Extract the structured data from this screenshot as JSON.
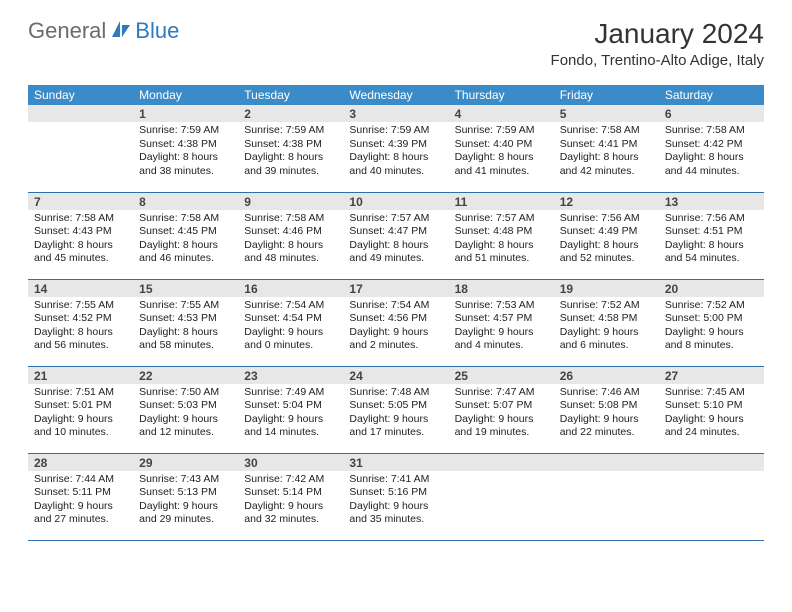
{
  "brand": {
    "text1": "General",
    "text2": "Blue"
  },
  "title": "January 2024",
  "location": "Fondo, Trentino-Alto Adige, Italy",
  "colors": {
    "header_bg": "#3b8bc8",
    "header_text": "#ffffff",
    "daynum_bg": "#e7e7e7",
    "row_border": "#2f6fa8",
    "brand_gray": "#6b6b6b",
    "brand_blue": "#2f7bbf"
  },
  "weekdays": [
    "Sunday",
    "Monday",
    "Tuesday",
    "Wednesday",
    "Thursday",
    "Friday",
    "Saturday"
  ],
  "weeks": [
    [
      null,
      {
        "n": "1",
        "sr": "7:59 AM",
        "ss": "4:38 PM",
        "dl1": "Daylight: 8 hours",
        "dl2": "and 38 minutes."
      },
      {
        "n": "2",
        "sr": "7:59 AM",
        "ss": "4:38 PM",
        "dl1": "Daylight: 8 hours",
        "dl2": "and 39 minutes."
      },
      {
        "n": "3",
        "sr": "7:59 AM",
        "ss": "4:39 PM",
        "dl1": "Daylight: 8 hours",
        "dl2": "and 40 minutes."
      },
      {
        "n": "4",
        "sr": "7:59 AM",
        "ss": "4:40 PM",
        "dl1": "Daylight: 8 hours",
        "dl2": "and 41 minutes."
      },
      {
        "n": "5",
        "sr": "7:58 AM",
        "ss": "4:41 PM",
        "dl1": "Daylight: 8 hours",
        "dl2": "and 42 minutes."
      },
      {
        "n": "6",
        "sr": "7:58 AM",
        "ss": "4:42 PM",
        "dl1": "Daylight: 8 hours",
        "dl2": "and 44 minutes."
      }
    ],
    [
      {
        "n": "7",
        "sr": "7:58 AM",
        "ss": "4:43 PM",
        "dl1": "Daylight: 8 hours",
        "dl2": "and 45 minutes."
      },
      {
        "n": "8",
        "sr": "7:58 AM",
        "ss": "4:45 PM",
        "dl1": "Daylight: 8 hours",
        "dl2": "and 46 minutes."
      },
      {
        "n": "9",
        "sr": "7:58 AM",
        "ss": "4:46 PM",
        "dl1": "Daylight: 8 hours",
        "dl2": "and 48 minutes."
      },
      {
        "n": "10",
        "sr": "7:57 AM",
        "ss": "4:47 PM",
        "dl1": "Daylight: 8 hours",
        "dl2": "and 49 minutes."
      },
      {
        "n": "11",
        "sr": "7:57 AM",
        "ss": "4:48 PM",
        "dl1": "Daylight: 8 hours",
        "dl2": "and 51 minutes."
      },
      {
        "n": "12",
        "sr": "7:56 AM",
        "ss": "4:49 PM",
        "dl1": "Daylight: 8 hours",
        "dl2": "and 52 minutes."
      },
      {
        "n": "13",
        "sr": "7:56 AM",
        "ss": "4:51 PM",
        "dl1": "Daylight: 8 hours",
        "dl2": "and 54 minutes."
      }
    ],
    [
      {
        "n": "14",
        "sr": "7:55 AM",
        "ss": "4:52 PM",
        "dl1": "Daylight: 8 hours",
        "dl2": "and 56 minutes."
      },
      {
        "n": "15",
        "sr": "7:55 AM",
        "ss": "4:53 PM",
        "dl1": "Daylight: 8 hours",
        "dl2": "and 58 minutes."
      },
      {
        "n": "16",
        "sr": "7:54 AM",
        "ss": "4:54 PM",
        "dl1": "Daylight: 9 hours",
        "dl2": "and 0 minutes."
      },
      {
        "n": "17",
        "sr": "7:54 AM",
        "ss": "4:56 PM",
        "dl1": "Daylight: 9 hours",
        "dl2": "and 2 minutes."
      },
      {
        "n": "18",
        "sr": "7:53 AM",
        "ss": "4:57 PM",
        "dl1": "Daylight: 9 hours",
        "dl2": "and 4 minutes."
      },
      {
        "n": "19",
        "sr": "7:52 AM",
        "ss": "4:58 PM",
        "dl1": "Daylight: 9 hours",
        "dl2": "and 6 minutes."
      },
      {
        "n": "20",
        "sr": "7:52 AM",
        "ss": "5:00 PM",
        "dl1": "Daylight: 9 hours",
        "dl2": "and 8 minutes."
      }
    ],
    [
      {
        "n": "21",
        "sr": "7:51 AM",
        "ss": "5:01 PM",
        "dl1": "Daylight: 9 hours",
        "dl2": "and 10 minutes."
      },
      {
        "n": "22",
        "sr": "7:50 AM",
        "ss": "5:03 PM",
        "dl1": "Daylight: 9 hours",
        "dl2": "and 12 minutes."
      },
      {
        "n": "23",
        "sr": "7:49 AM",
        "ss": "5:04 PM",
        "dl1": "Daylight: 9 hours",
        "dl2": "and 14 minutes."
      },
      {
        "n": "24",
        "sr": "7:48 AM",
        "ss": "5:05 PM",
        "dl1": "Daylight: 9 hours",
        "dl2": "and 17 minutes."
      },
      {
        "n": "25",
        "sr": "7:47 AM",
        "ss": "5:07 PM",
        "dl1": "Daylight: 9 hours",
        "dl2": "and 19 minutes."
      },
      {
        "n": "26",
        "sr": "7:46 AM",
        "ss": "5:08 PM",
        "dl1": "Daylight: 9 hours",
        "dl2": "and 22 minutes."
      },
      {
        "n": "27",
        "sr": "7:45 AM",
        "ss": "5:10 PM",
        "dl1": "Daylight: 9 hours",
        "dl2": "and 24 minutes."
      }
    ],
    [
      {
        "n": "28",
        "sr": "7:44 AM",
        "ss": "5:11 PM",
        "dl1": "Daylight: 9 hours",
        "dl2": "and 27 minutes."
      },
      {
        "n": "29",
        "sr": "7:43 AM",
        "ss": "5:13 PM",
        "dl1": "Daylight: 9 hours",
        "dl2": "and 29 minutes."
      },
      {
        "n": "30",
        "sr": "7:42 AM",
        "ss": "5:14 PM",
        "dl1": "Daylight: 9 hours",
        "dl2": "and 32 minutes."
      },
      {
        "n": "31",
        "sr": "7:41 AM",
        "ss": "5:16 PM",
        "dl1": "Daylight: 9 hours",
        "dl2": "and 35 minutes."
      },
      null,
      null,
      null
    ]
  ]
}
